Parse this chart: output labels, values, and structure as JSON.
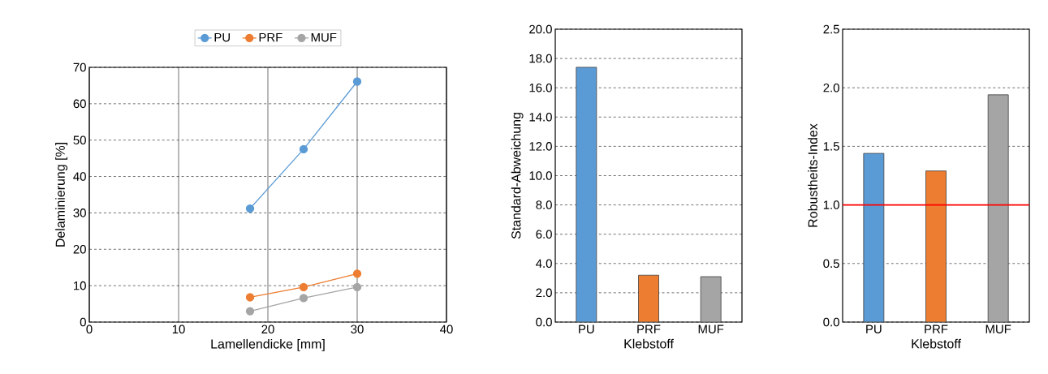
{
  "chart_data": [
    {
      "type": "line",
      "xlabel": "Lamellendicke [mm]",
      "ylabel": "Delaminierung [%]",
      "x": [
        18,
        24,
        30
      ],
      "series": [
        {
          "name": "PU",
          "color": "#5b9bd5",
          "values": [
            31.2,
            47.5,
            66.1
          ]
        },
        {
          "name": "PRF",
          "color": "#ed7d31",
          "values": [
            6.8,
            9.6,
            13.3
          ]
        },
        {
          "name": "MUF",
          "color": "#a5a5a5",
          "values": [
            3.0,
            6.6,
            9.6
          ]
        }
      ],
      "xlim": [
        0,
        40
      ],
      "xticks": [
        0,
        10,
        20,
        30,
        40
      ],
      "ylim": [
        0,
        70
      ],
      "yticks": [
        0,
        10,
        20,
        30,
        40,
        50,
        60,
        70
      ],
      "grid": true,
      "legend": "top",
      "marker": "circle"
    },
    {
      "type": "bar",
      "xlabel": "Klebstoff",
      "ylabel": "Standard-Abweichung",
      "categories": [
        "PU",
        "PRF",
        "MUF"
      ],
      "values": [
        17.4,
        3.2,
        3.1
      ],
      "colors": [
        "#5b9bd5",
        "#ed7d31",
        "#a5a5a5"
      ],
      "ylim": [
        0,
        20
      ],
      "yticks": [
        {
          "value": 0,
          "label": "0.0"
        },
        {
          "value": 2,
          "label": "2.0"
        },
        {
          "value": 4,
          "label": "4.0"
        },
        {
          "value": 6,
          "label": "6.0"
        },
        {
          "value": 8,
          "label": "8.0"
        },
        {
          "value": 10,
          "label": "10.0"
        },
        {
          "value": 12,
          "label": "12.0"
        },
        {
          "value": 14,
          "label": "14.0"
        },
        {
          "value": 16,
          "label": "16.0"
        },
        {
          "value": 18,
          "label": "18.0"
        },
        {
          "value": 20,
          "label": "20.0"
        }
      ],
      "grid": "y"
    },
    {
      "type": "bar",
      "xlabel": "Klebstoff",
      "ylabel": "Robustheits-Index",
      "categories": [
        "PU",
        "PRF",
        "MUF"
      ],
      "values": [
        1.44,
        1.29,
        1.94
      ],
      "colors": [
        "#5b9bd5",
        "#ed7d31",
        "#a5a5a5"
      ],
      "ylim": [
        0,
        2.5
      ],
      "yticks": [
        {
          "value": 0,
          "label": "0.0"
        },
        {
          "value": 0.5,
          "label": "0.5"
        },
        {
          "value": 1,
          "label": "1.0"
        },
        {
          "value": 1.5,
          "label": "1.5"
        },
        {
          "value": 2,
          "label": "2.0"
        },
        {
          "value": 2.5,
          "label": "2.5"
        }
      ],
      "grid": "y",
      "ref_lines": [
        {
          "axis": "y",
          "value": 1,
          "color": "#ff0000"
        }
      ]
    }
  ]
}
